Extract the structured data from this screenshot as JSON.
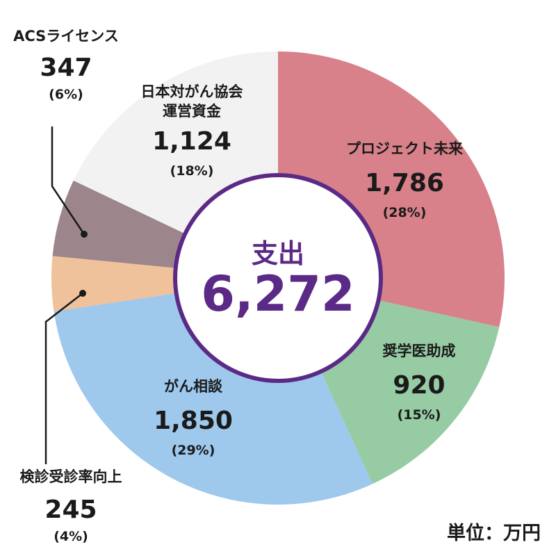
{
  "chart_data": {
    "type": "pie",
    "center": {
      "title": "支出",
      "total": "6,272"
    },
    "unit": "単位：万円",
    "slices": [
      {
        "label": "プロジェクト未来",
        "value": 1786,
        "value_text": "1,786",
        "percent_text": "(28%)",
        "color": "#d8818a"
      },
      {
        "label": "奨学医助成",
        "value": 920,
        "value_text": "920",
        "percent_text": "(15%)",
        "color": "#96cba3"
      },
      {
        "label": "がん相談",
        "value": 1850,
        "value_text": "1,850",
        "percent_text": "(29%)",
        "color": "#9ec8ec"
      },
      {
        "label": "検診受診率向上",
        "value": 245,
        "value_text": "245",
        "percent_text": "(4%)",
        "color": "#efc29b"
      },
      {
        "label": "ACSライセンス",
        "value": 347,
        "value_text": "347",
        "percent_text": "(6%)",
        "color": "#9c868c"
      },
      {
        "label": "日本対がん協会\n運営資金",
        "value": 1124,
        "value_text": "1,124",
        "percent_text": "(18%)",
        "color": "#f2f2f2"
      }
    ]
  },
  "colors": {
    "center_ring": "#5b2a86",
    "center_text": "#5b2a86",
    "leader": "#1a1a1a"
  }
}
